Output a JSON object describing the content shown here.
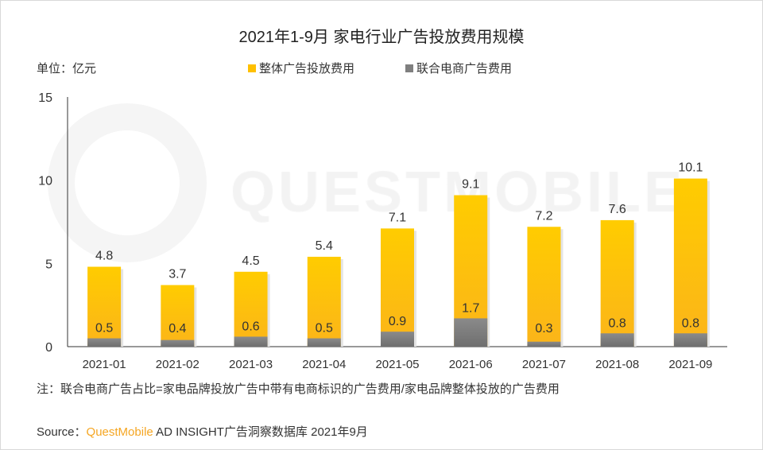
{
  "chart_data": {
    "type": "bar",
    "title": "2021年1-9月 家电行业广告投放费用规模",
    "unit_label": "单位：亿元",
    "categories": [
      "2021-01",
      "2021-02",
      "2021-03",
      "2021-04",
      "2021-05",
      "2021-06",
      "2021-07",
      "2021-08",
      "2021-09"
    ],
    "series": [
      {
        "name": "整体广告投放费用",
        "color": "#ffc000",
        "values": [
          4.8,
          3.7,
          4.5,
          5.4,
          7.1,
          9.1,
          7.2,
          7.6,
          10.1
        ]
      },
      {
        "name": "联合电商广告费用",
        "color": "#7f7f7f",
        "values": [
          0.5,
          0.4,
          0.6,
          0.5,
          0.9,
          1.7,
          0.3,
          0.8,
          0.8
        ]
      }
    ],
    "ylim": [
      0,
      15
    ],
    "yticks": [
      0,
      5,
      10,
      15
    ],
    "legend_position": "top",
    "grid": false
  },
  "watermark": "QUESTMOBILE",
  "note": "注：联合电商广告占比=家电品牌投放广告中带有电商标识的广告费用/家电品牌整体投放的广告费用",
  "source": {
    "label": "Source：",
    "brand": "QuestMobile",
    "text": " AD INSIGHT广告洞察数据库  2021年9月"
  }
}
